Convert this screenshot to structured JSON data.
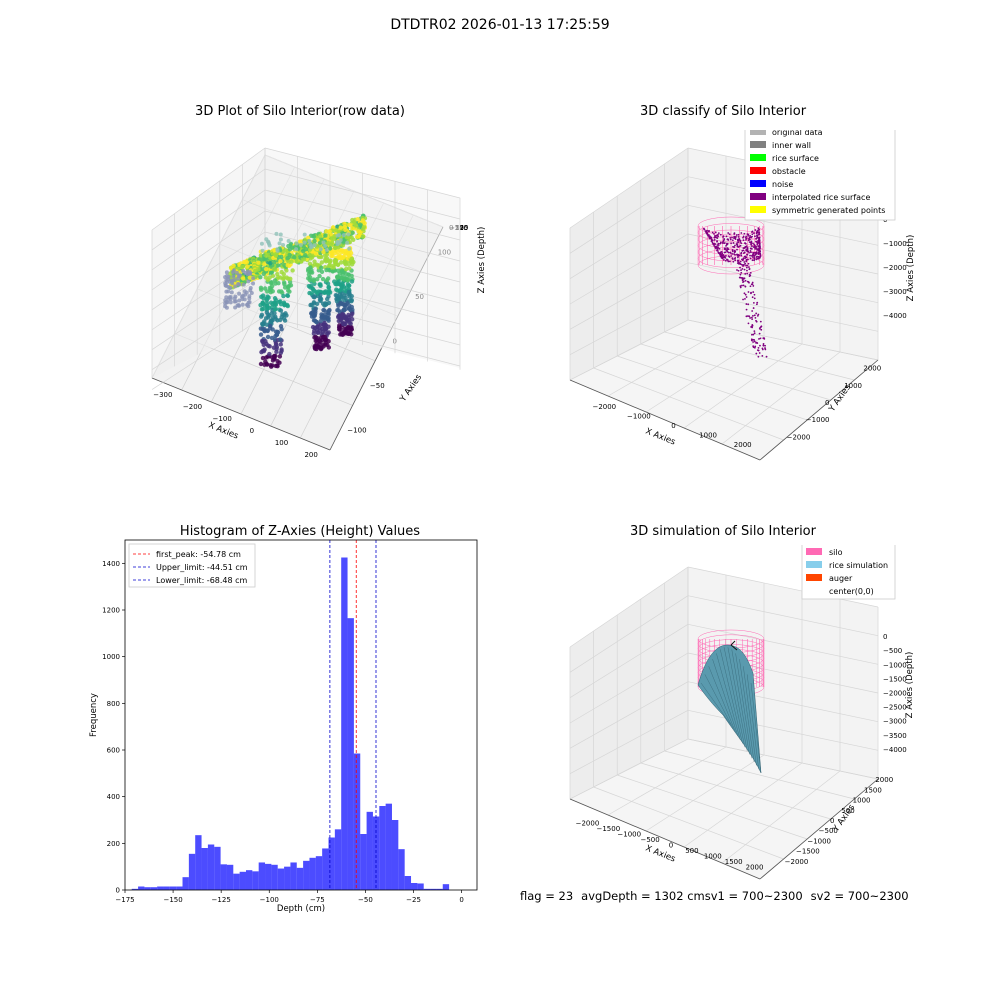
{
  "figure": {
    "suptitle": "DTDTR02 2026-01-13 17:25:59",
    "footer": {
      "flag": "flag = 23",
      "avg": "avgDepth = 1302 cmsv1 = 700~2300",
      "sv2": "sv2 = 700~2300"
    }
  },
  "colors": {
    "pink": "#ff69b4",
    "purple": "#800080",
    "hist_bar": "#0000ff",
    "peak_line": "#ff0000",
    "limit_line": "#0000cc",
    "rice_sim": "#5a9aae"
  },
  "chart_data": [
    {
      "type": "scatter",
      "dims": 3,
      "title": "3D Plot of Silo Interior(row data)",
      "xlabel": "X Axies",
      "ylabel": "Y Axies",
      "zlabel": "Z Axies (Depth)",
      "x_ticks": [
        "−300",
        "−200",
        "−100",
        "0",
        "100",
        "200"
      ],
      "y_ticks": [
        "−100",
        "−50",
        "0",
        "50",
        "100"
      ],
      "z_ticks": [
        "0",
        "−25",
        "−50",
        "−75",
        "−100",
        "−125",
        "−150",
        "−175"
      ],
      "xlim": [
        -330,
        220
      ],
      "ylim": [
        -110,
        120
      ],
      "zlim": [
        -190,
        5
      ],
      "colormap": "viridis"
    },
    {
      "type": "scatter",
      "dims": 3,
      "title": "3D classify of Silo Interior",
      "xlabel": "X Axies",
      "ylabel": "Y Axies",
      "zlabel": "Z Axies (Depth)",
      "x_ticks": [
        "−2000",
        "−1000",
        "0",
        "1000",
        "2000"
      ],
      "y_ticks": [
        "−2000",
        "−1000",
        "0",
        "1000",
        "2000"
      ],
      "z_ticks": [
        "0",
        "−1000",
        "−2000",
        "−3000",
        "−4000"
      ],
      "xlim": [
        -2300,
        2300
      ],
      "ylim": [
        -2300,
        2300
      ],
      "zlim": [
        -4300,
        100
      ],
      "legend": [
        {
          "label": "original data",
          "color": "#b3b3b3"
        },
        {
          "label": "inner wall",
          "color": "#808080"
        },
        {
          "label": "rice surface",
          "color": "#00ff00"
        },
        {
          "label": "obstacle",
          "color": "#ff0000"
        },
        {
          "label": "noise",
          "color": "#0000ff"
        },
        {
          "label": "interpolated rice surface",
          "color": "#800080"
        },
        {
          "label": "symmetric generated points",
          "color": "#ffff00"
        }
      ],
      "legend_loc": "upper right"
    },
    {
      "type": "bar",
      "title": "Histogram of Z-Axies (Height) Values",
      "xlabel": "Depth (cm)",
      "ylabel": "Frequency",
      "xlim": [
        -175,
        8
      ],
      "ylim": [
        0,
        1500
      ],
      "x_ticks": [
        -175,
        -150,
        -125,
        -100,
        -75,
        -50,
        -25,
        0
      ],
      "y_ticks": [
        0,
        200,
        400,
        600,
        800,
        1000,
        1200,
        1400
      ],
      "x_tick_labels": [
        "−175",
        "−150",
        "−125",
        "−100",
        "−75",
        "−50",
        "−25",
        "0"
      ],
      "y_tick_labels": [
        "0",
        "200",
        "400",
        "600",
        "800",
        "1000",
        "1200",
        "1400"
      ],
      "bin_width": 3.3,
      "bin_start": -171.5,
      "values": [
        5,
        15,
        12,
        12,
        15,
        15,
        15,
        15,
        55,
        155,
        235,
        180,
        195,
        185,
        110,
        108,
        70,
        78,
        85,
        80,
        118,
        112,
        108,
        92,
        100,
        118,
        95,
        125,
        138,
        145,
        178,
        225,
        260,
        1425,
        1165,
        585,
        240,
        335,
        315,
        360,
        370,
        300,
        175,
        60,
        30,
        28,
        5,
        5,
        5,
        25
      ],
      "vlines": [
        {
          "x": -54.78,
          "label": "first_peak: -54.78 cm",
          "style": "peak"
        },
        {
          "x": -44.51,
          "label": "Upper_limit: -44.51 cm",
          "style": "limit"
        },
        {
          "x": -68.48,
          "label": "Lower_limit: -68.48 cm",
          "style": "limit"
        }
      ],
      "grid": false,
      "legend_loc": "upper left"
    },
    {
      "type": "area",
      "dims": 3,
      "title": "3D simulation of Silo Interior",
      "xlabel": "X Axies",
      "ylabel": "Y Axies",
      "zlabel": "Z Axies (Depth)",
      "x_ticks": [
        "−2000",
        "−1500",
        "−1000",
        "−500",
        "0",
        "500",
        "1000",
        "1500",
        "2000"
      ],
      "y_ticks": [
        "−2000",
        "−1500",
        "−1000",
        "−500",
        "0",
        "500",
        "1000",
        "1500",
        "2000"
      ],
      "z_ticks": [
        "0",
        "−500",
        "−1000",
        "−1500",
        "−2000",
        "−2500",
        "−3000",
        "−3500",
        "−4000"
      ],
      "xlim": [
        -2300,
        2300
      ],
      "ylim": [
        -2300,
        2300
      ],
      "zlim": [
        -4300,
        200
      ],
      "legend": [
        {
          "label": "silo",
          "color": "#ff69b4"
        },
        {
          "label": "rice simulation",
          "color": "#87ceeb"
        },
        {
          "label": "auger",
          "color": "#ff4500"
        },
        {
          "label": "center(0,0)",
          "color": ""
        }
      ],
      "legend_loc": "upper right"
    }
  ]
}
